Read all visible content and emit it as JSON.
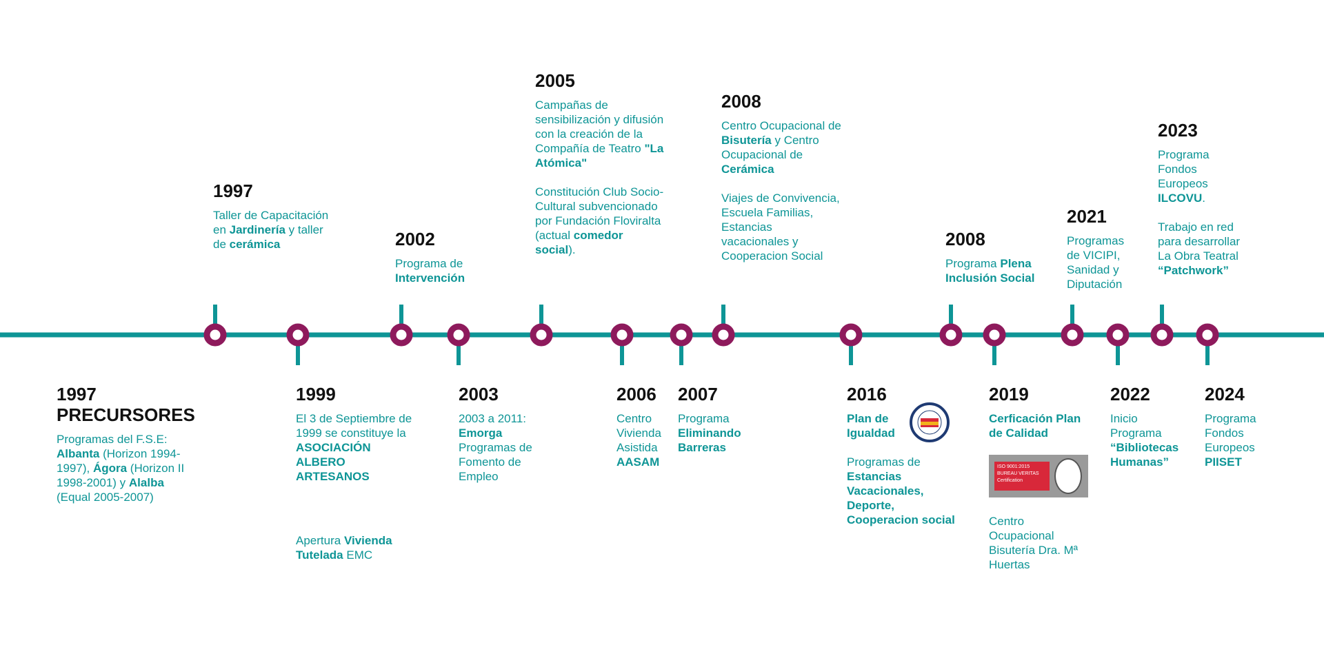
{
  "events": [
    {
      "year": "1997",
      "heading": "PRECURSORES",
      "paragraphs": [
        [
          {
            "text": "Programas del F.S.E: "
          },
          {
            "text": "Albanta",
            "bold": true
          },
          {
            "text": " (Horizon 1994-1997), "
          },
          {
            "text": "Ágora",
            "bold": true
          },
          {
            "text": " (Horizon II 1998-2001) y "
          },
          {
            "text": "Alalba",
            "bold": true
          },
          {
            "text": " (Equal 2005-2007)"
          }
        ]
      ]
    },
    {
      "year": "1997",
      "paragraphs": [
        [
          {
            "text": "Taller de Capacitación en "
          },
          {
            "text": "Jardinería",
            "bold": true
          },
          {
            "text": " y taller de "
          },
          {
            "text": "cerámica",
            "bold": true
          }
        ]
      ]
    },
    {
      "year": "1999",
      "paragraphs": [
        [
          {
            "text": "El 3 de Septiembre de 1999 se constituye la "
          },
          {
            "text": "ASOCIACIÓN ALBERO ARTESANOS",
            "bold": true
          }
        ],
        [
          {
            "text": "Apertura "
          },
          {
            "text": "Vivienda Tutelada",
            "bold": true
          },
          {
            "text": " EMC"
          }
        ]
      ]
    },
    {
      "year": "2002",
      "paragraphs": [
        [
          {
            "text": "Programa de "
          },
          {
            "text": "Intervención",
            "bold": true
          }
        ]
      ]
    },
    {
      "year": "2003",
      "paragraphs": [
        [
          {
            "text": "2003 a 2011: "
          },
          {
            "text": "Emorga",
            "bold": true
          },
          {
            "text": " Programas de Fomento de Empleo"
          }
        ]
      ]
    },
    {
      "year": "2005",
      "paragraphs": [
        [
          {
            "text": "Campañas de sensibilización y difusión con la creación de la Compañía de Teatro "
          },
          {
            "text": "\"La Atómica\"",
            "bold": true
          }
        ],
        [
          {
            "text": "Constitución Club Socio-Cultural subvencionado por Fundación Floviralta (actual "
          },
          {
            "text": "comedor social",
            "bold": true
          },
          {
            "text": ")."
          }
        ]
      ]
    },
    {
      "year": "2006",
      "paragraphs": [
        [
          {
            "text": "Centro Vivienda Asistida "
          },
          {
            "text": "AASAM",
            "bold": true
          }
        ]
      ]
    },
    {
      "year": "2007",
      "paragraphs": [
        [
          {
            "text": "Programa "
          },
          {
            "text": "Eliminando Barreras",
            "bold": true
          }
        ]
      ]
    },
    {
      "year": "2008",
      "paragraphs": [
        [
          {
            "text": "Centro Ocupacional de "
          },
          {
            "text": "Bisutería",
            "bold": true
          },
          {
            "text": " y Centro Ocupacional de "
          },
          {
            "text": "Cerámica",
            "bold": true
          }
        ],
        [
          {
            "text": "Viajes de Convivencia, Escuela Familias, Estancias vacacionales y Cooperacion Social"
          }
        ]
      ]
    },
    {
      "year": "2016",
      "paragraphs": [
        [
          {
            "text": "Plan de Igualdad",
            "bold": true
          }
        ],
        [
          {
            "text": "Programas de "
          },
          {
            "text": "Estancias Vacacionales, Deporte, Cooperacion social",
            "bold": true
          }
        ]
      ]
    },
    {
      "year": "2008",
      "paragraphs": [
        [
          {
            "text": "Programa "
          },
          {
            "text": "Plena Inclusión Social",
            "bold": true
          }
        ]
      ]
    },
    {
      "year": "2019",
      "paragraphs": [
        [
          {
            "text": "Cerficación Plan de Calidad",
            "bold": true
          }
        ],
        [
          {
            "text": "Centro Ocupacional Bisutería Dra. Mª Huertas"
          }
        ]
      ],
      "badge": [
        "ISO 9001:2015",
        "BUREAU VERITAS",
        "Certification"
      ]
    },
    {
      "year": "2021",
      "paragraphs": [
        [
          {
            "text": "Programas de VICIPI, Sanidad y Diputación"
          }
        ]
      ]
    },
    {
      "year": "2022",
      "paragraphs": [
        [
          {
            "text": "Inicio Programa "
          },
          {
            "text": "“Bibliotecas Humanas”",
            "bold": true
          }
        ]
      ]
    },
    {
      "year": "2023",
      "paragraphs": [
        [
          {
            "text": "Programa Fondos Europeos "
          },
          {
            "text": "ILCOVU",
            "bold": true
          },
          {
            "text": "."
          }
        ],
        [
          {
            "text": "Trabajo en red para desarrollar La Obra Teatral "
          },
          {
            "text": "“Patchwork”",
            "bold": true
          }
        ]
      ]
    },
    {
      "year": "2024",
      "paragraphs": [
        [
          {
            "text": "Programa Fondos Europeos "
          },
          {
            "text": "PIISET",
            "bold": true
          }
        ]
      ]
    }
  ]
}
